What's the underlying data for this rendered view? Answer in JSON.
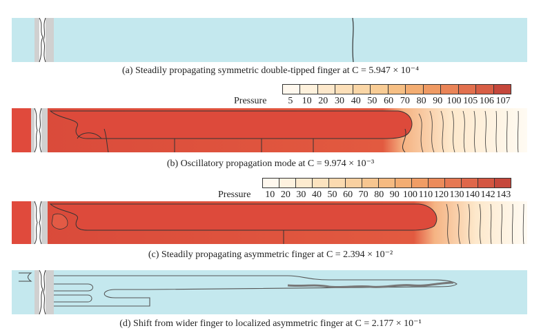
{
  "figure": {
    "panels": [
      {
        "id": "a",
        "caption": "(a) Steadily propagating symmetric double-tipped finger at C = 5.947 × 10⁻⁴"
      },
      {
        "id": "b",
        "caption": "(b) Oscillatory propagation mode at  C = 9.974 × 10⁻³",
        "colorbar": {
          "label": "Pressure",
          "ticks": [
            "5",
            "10",
            "20",
            "30",
            "40",
            "50",
            "60",
            "70",
            "80",
            "90",
            "100",
            "105",
            "106",
            "107"
          ],
          "colors": [
            "#fff8ee",
            "#fef1dc",
            "#fde8cb",
            "#fcdfb8",
            "#fad6a6",
            "#f8cc95",
            "#f6bf84",
            "#f3ad72",
            "#ef9a63",
            "#ea8457",
            "#e2704e",
            "#d85e45",
            "#c5473b"
          ]
        }
      },
      {
        "id": "c",
        "caption": "(c) Steadily propagating asymmetric finger at C = 2.394 × 10⁻²",
        "colorbar": {
          "label": "Pressure",
          "ticks": [
            "10",
            "20",
            "30",
            "40",
            "50",
            "60",
            "70",
            "80",
            "90",
            "100",
            "110",
            "120",
            "130",
            "140",
            "142",
            "143"
          ],
          "colors": [
            "#fff8ee",
            "#fef2df",
            "#fdebcf",
            "#fce3bf",
            "#fbdab0",
            "#f9d0a0",
            "#f7c690",
            "#f5ba81",
            "#f3ad72",
            "#f09d65",
            "#ec8b5a",
            "#e67852",
            "#df674a",
            "#d45641",
            "#c5473b"
          ]
        }
      },
      {
        "id": "d",
        "caption": "(d) Shift from wider finger to localized asymmetric finger at  C = 2.177 × 10⁻¹"
      }
    ]
  }
}
